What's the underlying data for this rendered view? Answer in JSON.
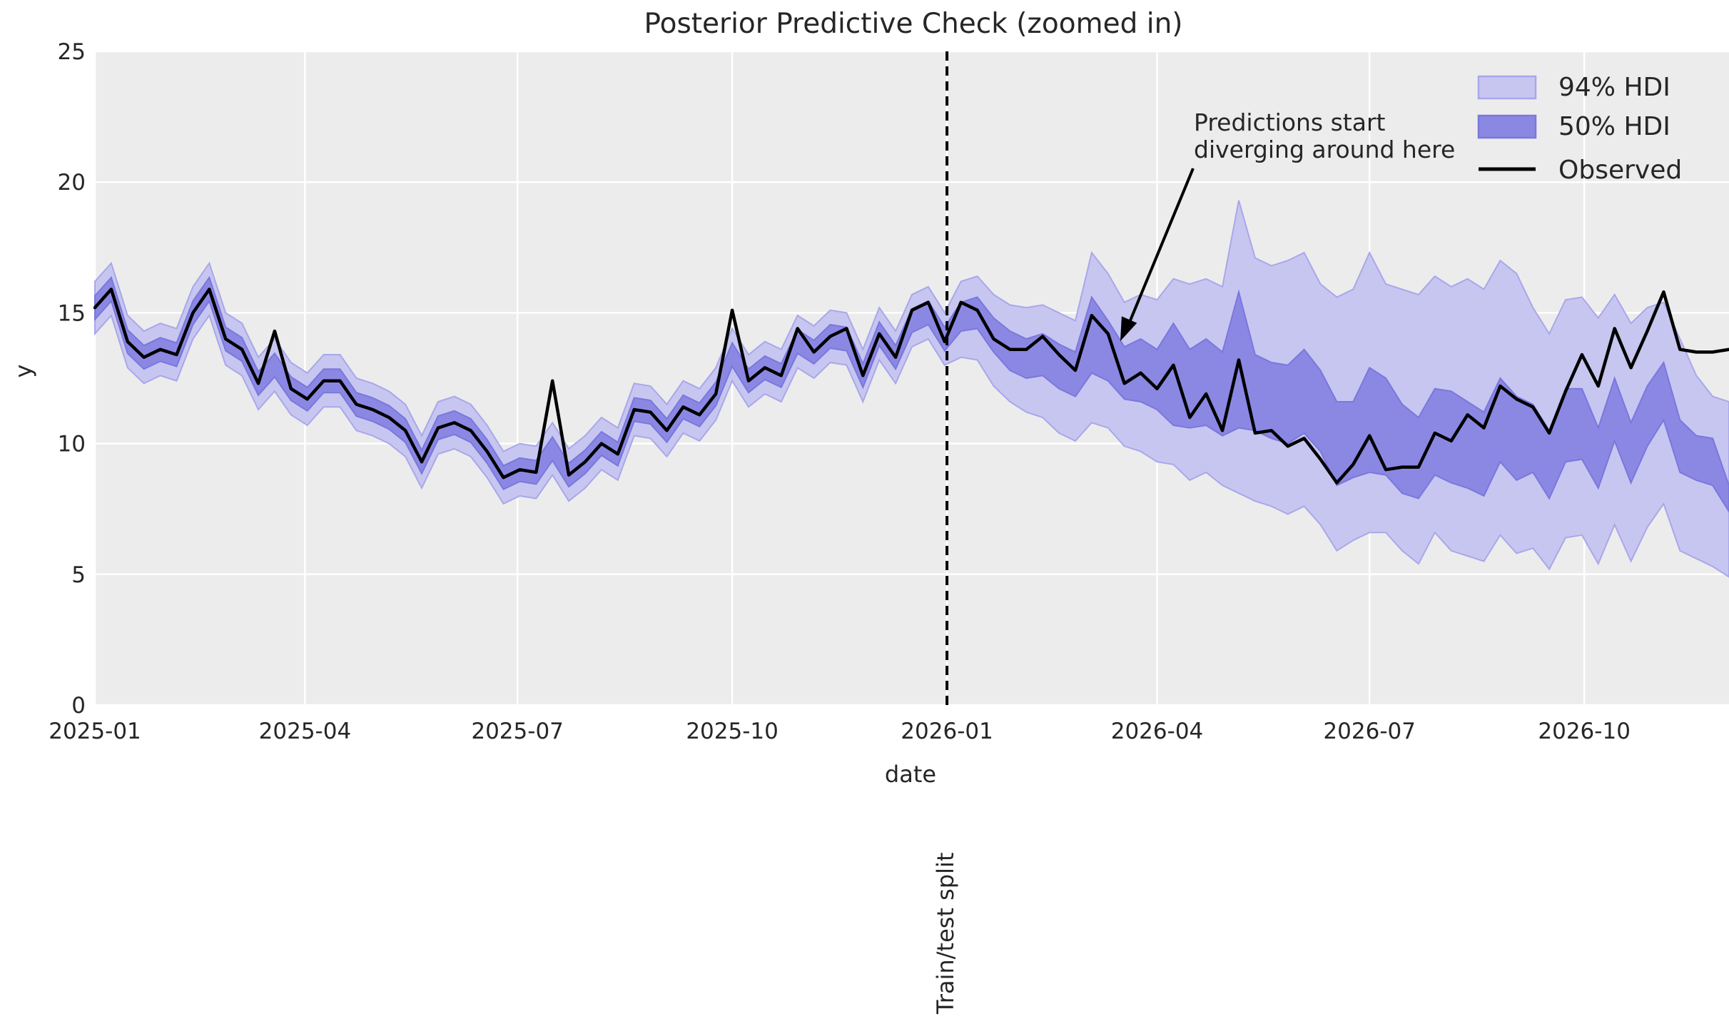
{
  "colors": {
    "figure_bg": "#ffffff",
    "plot_bg": "#ececec",
    "grid": "#ffffff",
    "hdi94_fill": "#c7c6f0",
    "hdi94_edge": "#a9a7ea",
    "hdi50_fill": "#8b88e4",
    "hdi50_edge": "#7a77dd",
    "observed": "#000000",
    "split_line": "#000000",
    "text": "#262626"
  },
  "chart_data": {
    "type": "line",
    "title": "Posterior Predictive Check (zoomed in)",
    "xlabel": "date",
    "ylabel": "y",
    "ylim": [
      0,
      25
    ],
    "yticks": [
      0,
      5,
      10,
      15,
      20,
      25
    ],
    "xticks": [
      "2025-01",
      "2025-04",
      "2025-07",
      "2025-10",
      "2026-01",
      "2026-04",
      "2026-07",
      "2026-10"
    ],
    "grid": true,
    "legend_position": "upper right",
    "legend": [
      {
        "label": "94% HDI",
        "kind": "patch"
      },
      {
        "label": "50% HDI",
        "kind": "patch"
      },
      {
        "label": "Observed",
        "kind": "line"
      }
    ],
    "split": {
      "date": "2026-01-01",
      "label": "Train/test split"
    },
    "annotation": {
      "lines": [
        "Predictions start",
        "diverging around here"
      ],
      "points_to_date": "2026-03-11",
      "points_to_value": 13.9
    },
    "x_start": "2025-01-01",
    "x_step_days": 7,
    "x_count": 101,
    "series": [
      {
        "name": "94% HDI",
        "kind": "band",
        "upper": [
          16.2,
          16.9,
          14.9,
          14.3,
          14.6,
          14.4,
          16.0,
          16.9,
          15.0,
          14.6,
          13.3,
          14.0,
          13.1,
          12.7,
          13.4,
          13.4,
          12.5,
          12.3,
          12.0,
          11.5,
          10.3,
          11.6,
          11.8,
          11.5,
          10.7,
          9.7,
          10.0,
          9.9,
          10.8,
          9.8,
          10.3,
          11.0,
          10.6,
          12.3,
          12.2,
          11.5,
          12.4,
          12.1,
          12.9,
          14.4,
          13.4,
          13.9,
          13.6,
          14.9,
          14.5,
          15.1,
          15.0,
          13.6,
          15.2,
          14.3,
          15.7,
          16.0,
          15.0,
          16.2,
          16.4,
          15.7,
          15.3,
          15.2,
          15.3,
          15.0,
          14.7,
          17.3,
          16.5,
          15.4,
          15.7,
          15.5,
          16.3,
          16.1,
          16.3,
          16.0,
          19.3,
          17.1,
          16.8,
          17.0,
          17.3,
          16.1,
          15.6,
          15.9,
          17.3,
          16.1,
          15.9,
          15.7,
          16.4,
          16.0,
          16.3,
          15.9,
          17.0,
          16.5,
          15.2,
          14.2,
          15.5,
          15.6,
          14.8,
          15.7,
          14.6,
          15.2,
          15.4,
          14.0,
          12.6,
          11.8,
          11.6
        ],
        "lower": [
          14.2,
          14.9,
          12.9,
          12.3,
          12.6,
          12.4,
          14.0,
          14.9,
          13.0,
          12.6,
          11.3,
          12.0,
          11.1,
          10.7,
          11.4,
          11.4,
          10.5,
          10.3,
          10.0,
          9.5,
          8.3,
          9.6,
          9.8,
          9.5,
          8.7,
          7.7,
          8.0,
          7.9,
          8.8,
          7.8,
          8.3,
          9.0,
          8.6,
          10.3,
          10.2,
          9.5,
          10.4,
          10.1,
          10.9,
          12.4,
          11.4,
          11.9,
          11.6,
          12.9,
          12.5,
          13.1,
          13.0,
          11.6,
          13.2,
          12.3,
          13.7,
          14.0,
          13.0,
          13.3,
          13.2,
          12.2,
          11.6,
          11.2,
          11.0,
          10.4,
          10.1,
          10.8,
          10.6,
          9.9,
          9.7,
          9.3,
          9.2,
          8.6,
          8.9,
          8.4,
          8.1,
          7.8,
          7.6,
          7.3,
          7.6,
          6.9,
          5.9,
          6.3,
          6.6,
          6.6,
          5.9,
          5.4,
          6.6,
          5.9,
          5.7,
          5.5,
          6.5,
          5.8,
          6.0,
          5.2,
          6.4,
          6.5,
          5.4,
          6.9,
          5.5,
          6.8,
          7.7,
          5.9,
          5.6,
          5.3,
          4.9
        ]
      },
      {
        "name": "50% HDI",
        "kind": "band",
        "upper": [
          15.65,
          16.35,
          14.35,
          13.75,
          14.05,
          13.85,
          15.45,
          16.35,
          14.45,
          14.05,
          12.75,
          13.45,
          12.55,
          12.15,
          12.85,
          12.85,
          11.95,
          11.75,
          11.45,
          10.95,
          9.75,
          11.05,
          11.25,
          10.95,
          10.15,
          9.15,
          9.45,
          9.35,
          10.25,
          9.25,
          9.75,
          10.45,
          10.05,
          11.75,
          11.65,
          10.95,
          11.85,
          11.55,
          12.35,
          13.85,
          12.85,
          13.35,
          13.05,
          14.35,
          13.95,
          14.55,
          14.45,
          13.05,
          14.65,
          13.75,
          15.15,
          15.45,
          14.45,
          15.4,
          15.6,
          14.8,
          14.3,
          14.0,
          14.2,
          13.8,
          13.5,
          15.6,
          14.7,
          13.7,
          14.0,
          13.6,
          14.6,
          13.6,
          14.0,
          13.5,
          15.8,
          13.4,
          13.1,
          13.0,
          13.6,
          12.8,
          11.6,
          11.6,
          12.9,
          12.5,
          11.5,
          11.0,
          12.1,
          12.0,
          11.6,
          11.2,
          12.5,
          11.8,
          11.5,
          10.5,
          12.1,
          12.1,
          10.6,
          12.5,
          10.8,
          12.2,
          13.1,
          10.9,
          10.3,
          10.2,
          8.4
        ],
        "lower": [
          14.75,
          15.45,
          13.45,
          12.85,
          13.15,
          12.95,
          14.55,
          15.45,
          13.55,
          13.15,
          11.85,
          12.55,
          11.65,
          11.25,
          11.95,
          11.95,
          11.05,
          10.85,
          10.55,
          10.05,
          8.85,
          10.15,
          10.35,
          10.05,
          9.25,
          8.25,
          8.55,
          8.45,
          9.35,
          8.35,
          8.85,
          9.55,
          9.15,
          10.85,
          10.75,
          10.05,
          10.95,
          10.65,
          11.45,
          12.95,
          11.95,
          12.45,
          12.15,
          13.45,
          13.05,
          13.65,
          13.55,
          12.15,
          13.75,
          12.85,
          14.25,
          14.55,
          13.55,
          14.3,
          14.4,
          13.5,
          12.8,
          12.5,
          12.6,
          12.1,
          11.8,
          12.7,
          12.4,
          11.7,
          11.6,
          11.3,
          10.7,
          10.6,
          10.7,
          10.3,
          10.6,
          10.5,
          10.2,
          10.0,
          10.4,
          9.7,
          8.4,
          8.7,
          8.9,
          8.8,
          8.1,
          7.9,
          8.8,
          8.5,
          8.3,
          8.0,
          9.3,
          8.6,
          8.9,
          7.9,
          9.3,
          9.4,
          8.3,
          10.1,
          8.5,
          9.9,
          10.9,
          8.9,
          8.6,
          8.4,
          7.4
        ]
      },
      {
        "name": "Observed",
        "kind": "line",
        "values": [
          15.2,
          15.9,
          13.9,
          13.3,
          13.6,
          13.4,
          15.0,
          15.9,
          14.0,
          13.6,
          12.3,
          14.3,
          12.1,
          11.7,
          12.4,
          12.4,
          11.5,
          11.3,
          11.0,
          10.5,
          9.3,
          10.6,
          10.8,
          10.5,
          9.7,
          8.7,
          9.0,
          8.9,
          12.4,
          8.8,
          9.3,
          10.0,
          9.6,
          11.3,
          11.2,
          10.5,
          11.4,
          11.1,
          11.9,
          15.1,
          12.4,
          12.9,
          12.6,
          14.4,
          13.5,
          14.1,
          14.4,
          12.6,
          14.2,
          13.3,
          15.1,
          15.4,
          13.9,
          15.4,
          15.1,
          14.0,
          13.6,
          13.6,
          14.1,
          13.4,
          12.8,
          14.9,
          14.2,
          12.3,
          12.7,
          12.1,
          13.0,
          11.0,
          11.9,
          10.5,
          13.2,
          10.4,
          10.5,
          9.9,
          10.2,
          9.4,
          8.5,
          9.2,
          10.3,
          9.0,
          9.1,
          9.1,
          10.4,
          10.1,
          11.1,
          10.6,
          12.2,
          11.7,
          11.4,
          10.4,
          12.0,
          13.4,
          12.2,
          14.4,
          12.9,
          14.3,
          15.8,
          13.6,
          13.5,
          13.5,
          13.6
        ]
      }
    ]
  }
}
